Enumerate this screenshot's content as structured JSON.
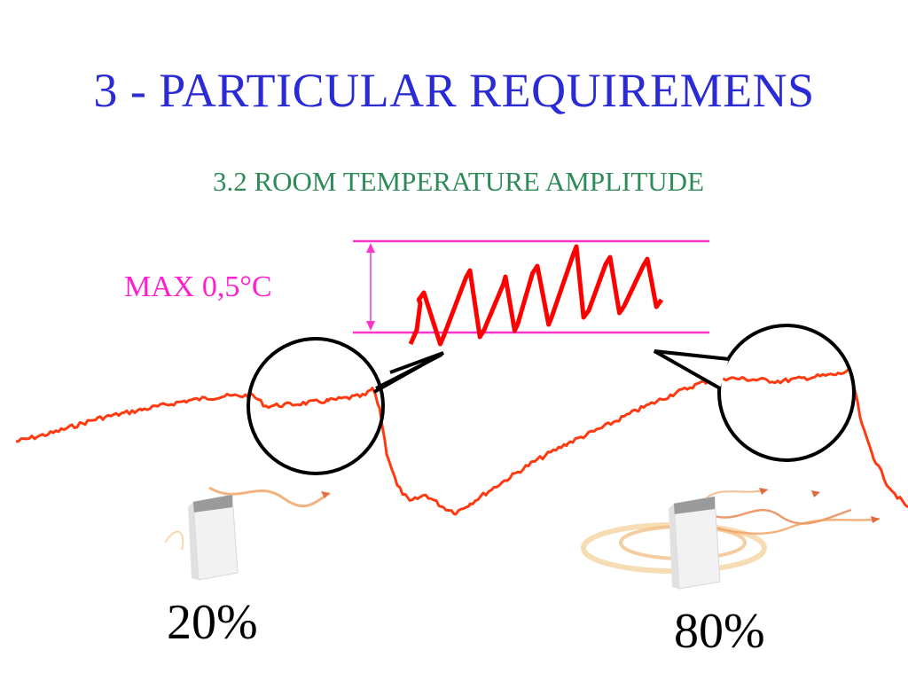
{
  "slide": {
    "title": "3 - PARTICULAR REQUIREMENS",
    "subtitle": "3.2 ROOM TEMPERATURE AMPLITUDE",
    "amplitude_label": "MAX 0,5°C",
    "low_level": "20%",
    "high_level": "80%"
  },
  "colors": {
    "title": "#2b2bd6",
    "subtitle": "#2e8b57",
    "amplitude": "#ff1fd0",
    "trace": "#ff3a10",
    "zoom_trace": "#ff0000",
    "heater_airflow": "#f0a060"
  },
  "icons": {
    "left_heater": "radiator-icon",
    "right_heater": "radiator-icon",
    "left_magnifier": "zoom-circle-icon",
    "right_magnifier": "zoom-circle-icon"
  }
}
